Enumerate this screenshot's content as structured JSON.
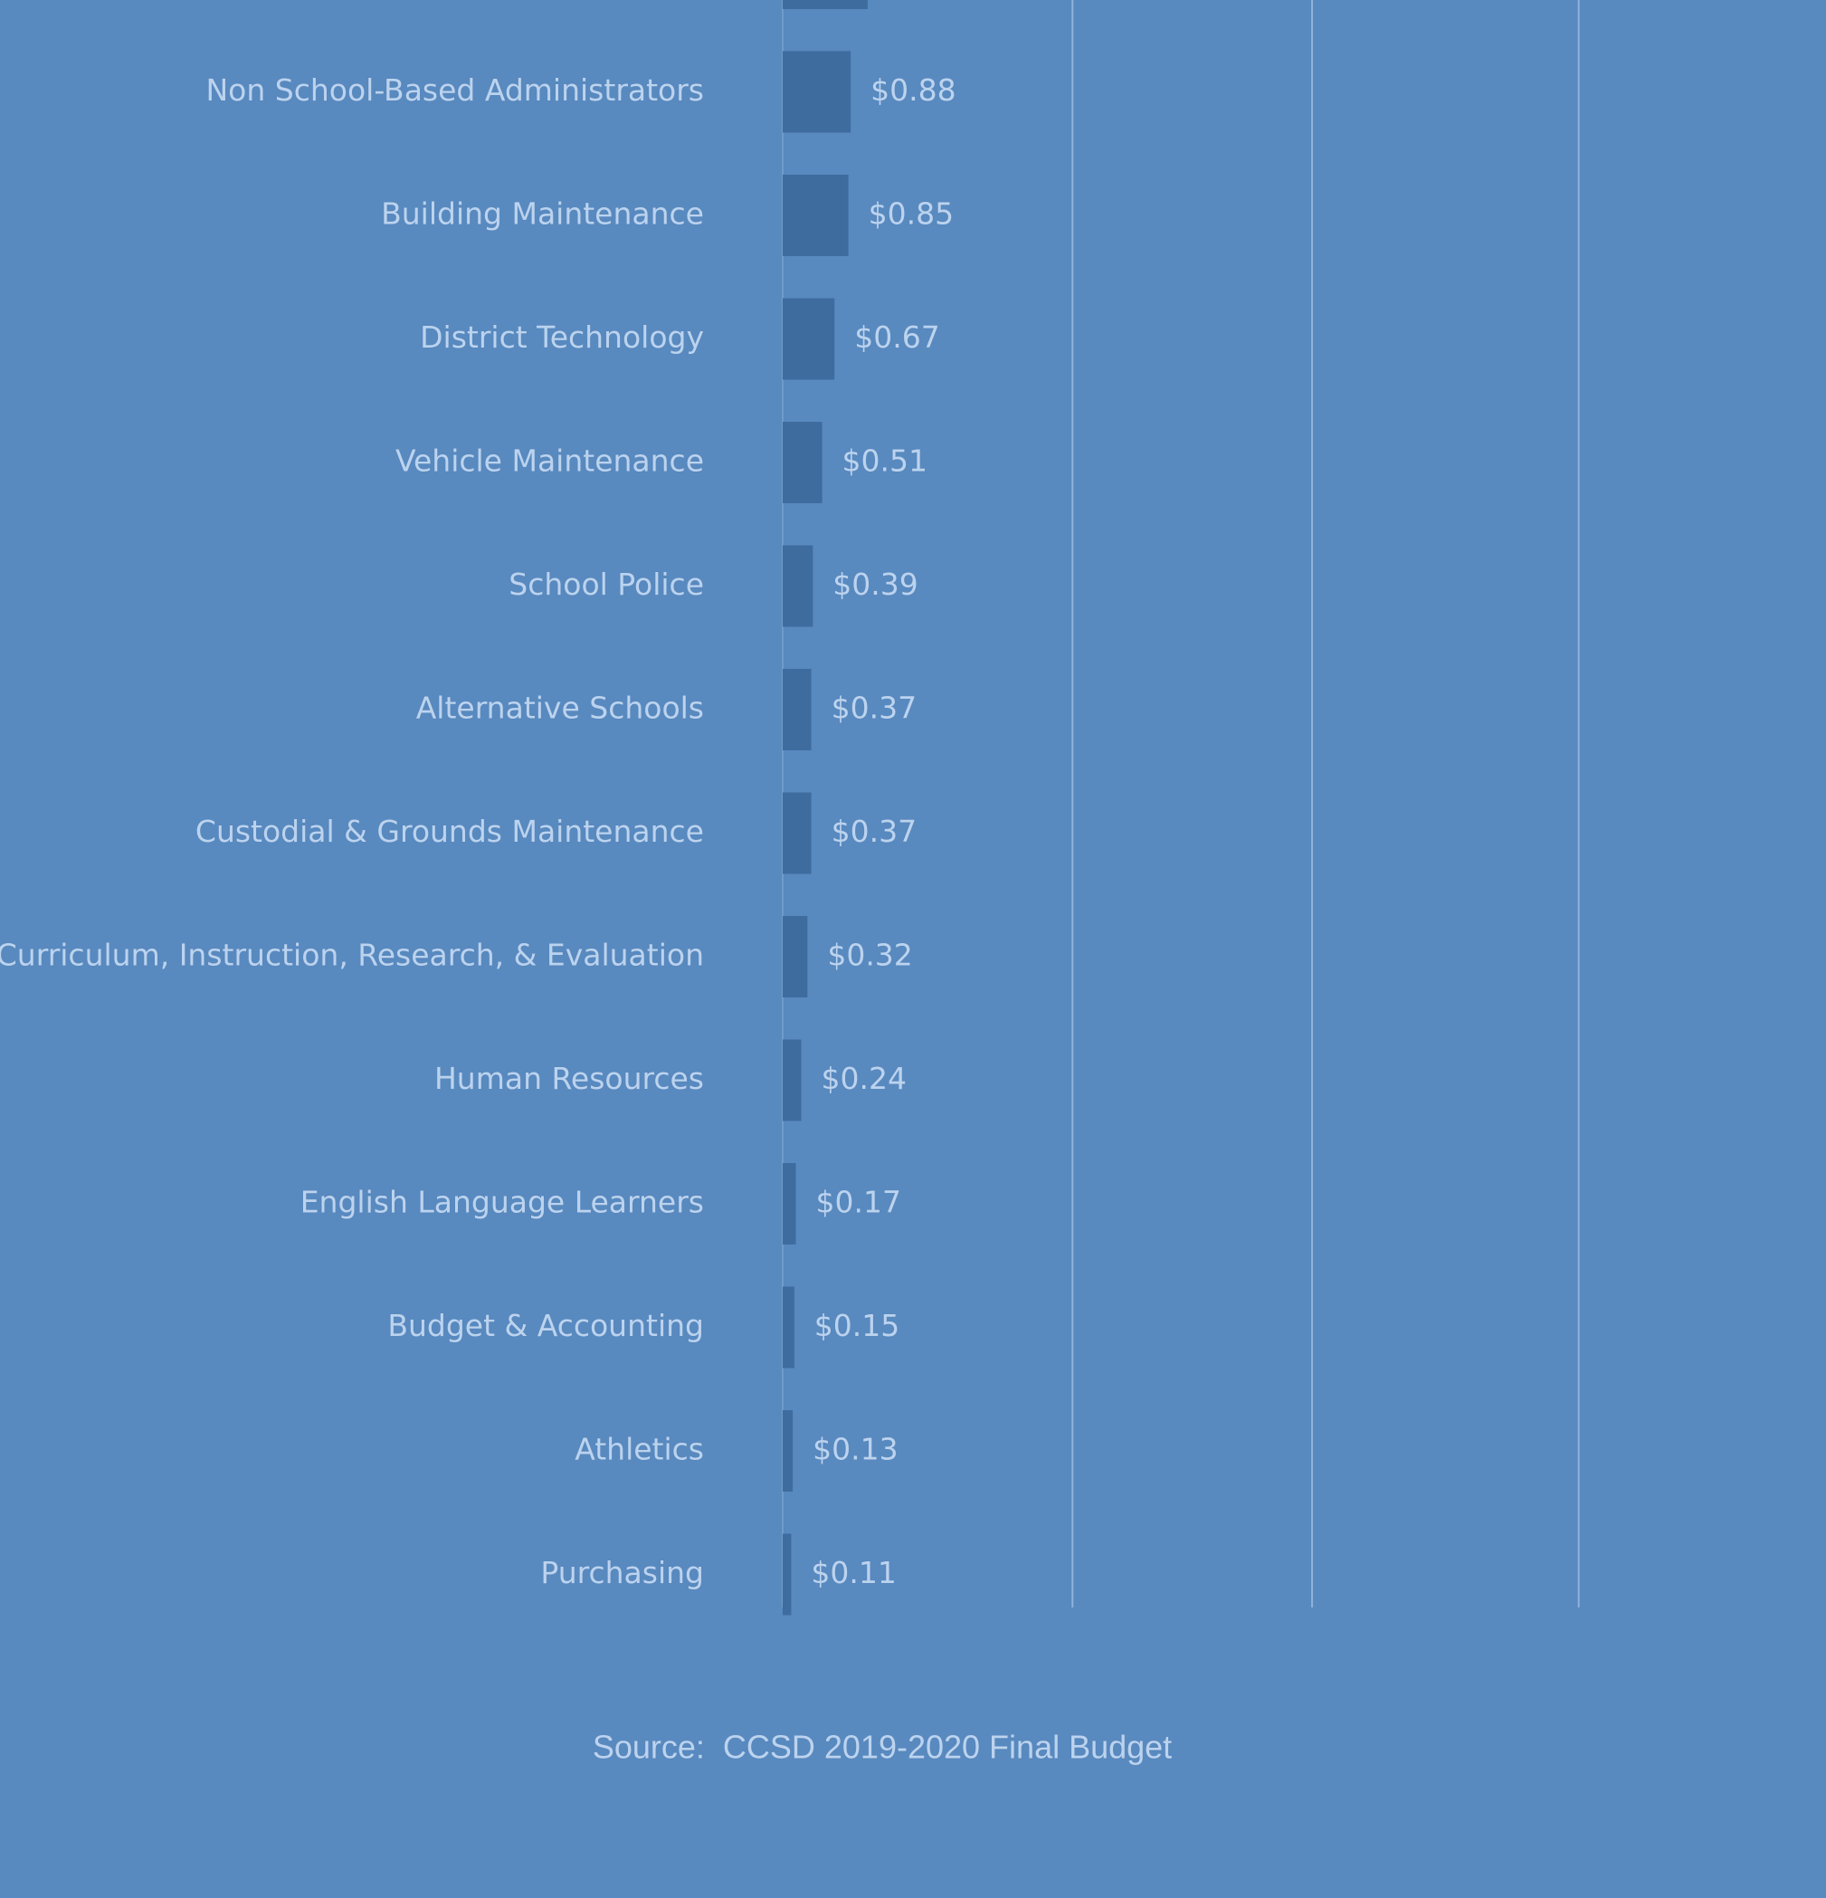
{
  "chart_data": {
    "type": "bar",
    "orientation": "horizontal",
    "categories": [
      null,
      "Non School-Based Administrators",
      "Building Maintenance",
      "District Technology",
      "Vehicle Maintenance",
      "School Police",
      "Alternative Schools",
      "Custodial & Grounds Maintenance",
      "Curriculum, Instruction, Research, & Evaluation",
      "Human Resources",
      "English Language Learners",
      "Budget & Accounting",
      "Athletics",
      "Purchasing"
    ],
    "values": [
      1.1,
      0.88,
      0.85,
      0.67,
      0.51,
      0.39,
      0.37,
      0.37,
      0.32,
      0.24,
      0.17,
      0.15,
      0.13,
      0.11
    ],
    "value_labels": [
      null,
      "$0.88",
      "$0.85",
      "$0.67",
      "$0.51",
      "$0.39",
      "$0.37",
      "$0.37",
      "$0.32",
      "$0.24",
      "$0.17",
      "$0.15",
      "$0.13",
      "$0.11"
    ],
    "color": "#3f6c9f",
    "xlim": [
      0,
      13.5
    ],
    "xticks": [
      0,
      3.75,
      6.85,
      10.3
    ],
    "grid": true,
    "source": "Source:  CCSD 2019-2020 Final Budget"
  }
}
